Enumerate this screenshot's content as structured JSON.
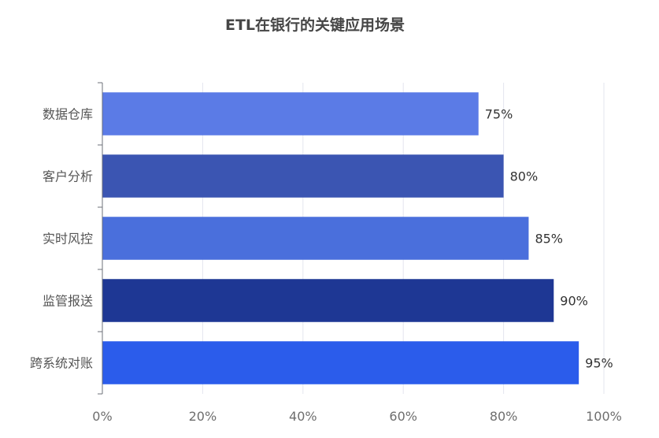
{
  "chart_data": {
    "type": "bar",
    "orientation": "horizontal",
    "title": "ETL在银行的关键应用场景",
    "categories": [
      "数据仓库",
      "客户分析",
      "实时风控",
      "监管报送",
      "跨系统对账"
    ],
    "values": [
      75,
      80,
      85,
      90,
      95
    ],
    "value_labels": [
      "75%",
      "80%",
      "85%",
      "90%",
      "95%"
    ],
    "bar_colors": [
      "#5B7BE6",
      "#3B55B2",
      "#4A6FDC",
      "#1E3794",
      "#2B5CEB"
    ],
    "xlim": [
      0,
      100
    ],
    "x_ticks": [
      0,
      20,
      40,
      60,
      80,
      100
    ],
    "x_tick_labels": [
      "0%",
      "20%",
      "40%",
      "60%",
      "80%",
      "100%"
    ],
    "xlabel": "",
    "ylabel": "",
    "grid": true,
    "legend": "none"
  }
}
